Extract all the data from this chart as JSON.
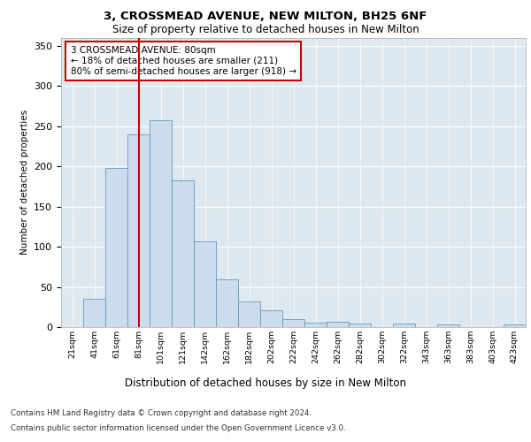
{
  "title": "3, CROSSMEAD AVENUE, NEW MILTON, BH25 6NF",
  "subtitle": "Size of property relative to detached houses in New Milton",
  "xlabel": "Distribution of detached houses by size in New Milton",
  "ylabel": "Number of detached properties",
  "categories": [
    "21sqm",
    "41sqm",
    "61sqm",
    "81sqm",
    "101sqm",
    "121sqm",
    "142sqm",
    "162sqm",
    "182sqm",
    "202sqm",
    "222sqm",
    "242sqm",
    "262sqm",
    "282sqm",
    "302sqm",
    "322sqm",
    "343sqm",
    "363sqm",
    "383sqm",
    "403sqm",
    "423sqm"
  ],
  "values": [
    0,
    35,
    198,
    240,
    257,
    183,
    107,
    59,
    32,
    21,
    10,
    6,
    7,
    4,
    0,
    4,
    0,
    3,
    0,
    0,
    3
  ],
  "bar_color": "#ccdcec",
  "bar_edge_color": "#6699bb",
  "vline_x": 3,
  "vline_color": "#cc0000",
  "annotation_text": "3 CROSSMEAD AVENUE: 80sqm\n← 18% of detached houses are smaller (211)\n80% of semi-detached houses are larger (918) →",
  "annotation_box_color": "#ffffff",
  "annotation_box_edge": "#cc0000",
  "ylim": [
    0,
    360
  ],
  "yticks": [
    0,
    50,
    100,
    150,
    200,
    250,
    300,
    350
  ],
  "plot_background": "#dde8f0",
  "footer1": "Contains HM Land Registry data © Crown copyright and database right 2024.",
  "footer2": "Contains public sector information licensed under the Open Government Licence v3.0."
}
